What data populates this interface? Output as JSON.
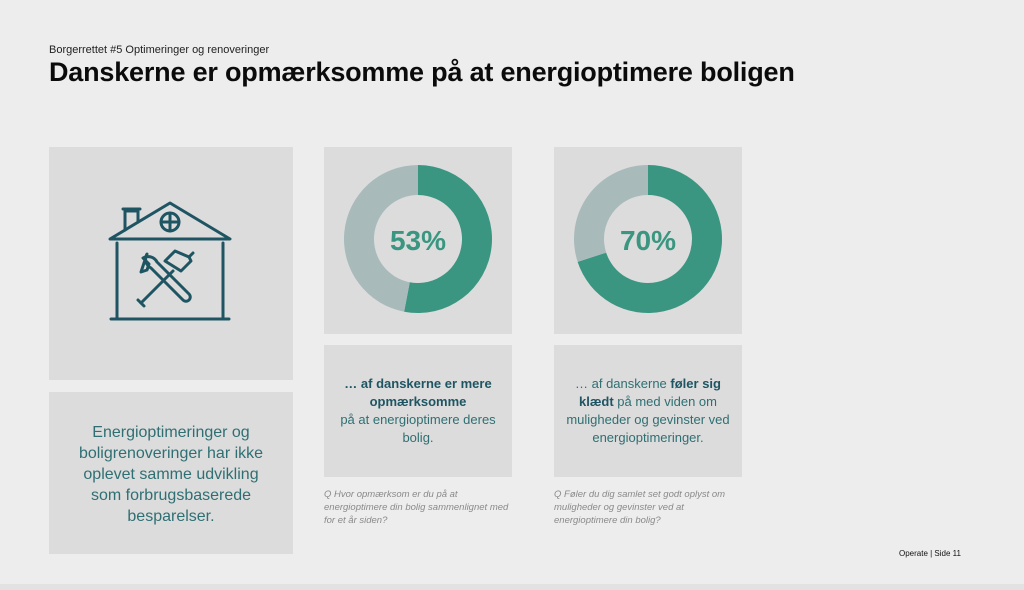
{
  "header": {
    "subtitle": "Borgerrettet #5 Optimeringer og renoveringer",
    "title": "Danskerne er opmærksomme på at energioptimere boligen"
  },
  "icon_panel": {
    "icon": "house-tools-icon"
  },
  "left_text": "Energioptimeringer og boligrenoveringer har ikke oplevet samme udvikling som forbrugsbaserede besparelser.",
  "colors": {
    "primary": "#3a9680",
    "remainder": "#a9babb",
    "text_accent": "#2f6f73"
  },
  "chart_data": [
    {
      "type": "pie",
      "values": [
        53,
        47
      ],
      "label": "53%",
      "caption": {
        "bold": "… af danskerne er mere opmærksomme",
        "rest": "på at energioptimere deres bolig."
      },
      "question": "Q  Hvor opmærksom er du på at energioptimere din bolig sammenlignet med for et år siden?"
    },
    {
      "type": "pie",
      "values": [
        70,
        30
      ],
      "label": "70%",
      "caption": {
        "pre": "… af danskerne ",
        "bold": "føler sig klædt",
        "rest": " på med viden om muligheder og gevinster ved energioptimeringer."
      },
      "question": "Q  Føler du dig samlet set godt oplyst om muligheder og gevinster ved at energioptimere din bolig?"
    }
  ],
  "footer": {
    "text": "Operate |  Side  11"
  }
}
